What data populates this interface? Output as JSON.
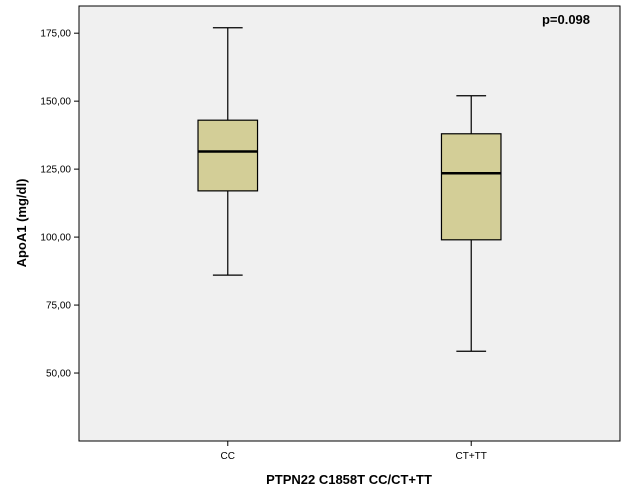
{
  "chart_data": {
    "type": "boxplot",
    "title": "",
    "xlabel": "PTPN22 C1858T CC/CT+TT",
    "ylabel": "ApoA1 (mg/dl)",
    "annotation": "p=0.098",
    "ylim": [
      25,
      185
    ],
    "yticks": [
      50,
      75,
      100,
      125,
      150,
      175
    ],
    "ytick_labels": [
      "50,00",
      "75,00",
      "100,00",
      "125,00",
      "150,00",
      "175,00"
    ],
    "categories": [
      "CC",
      "CT+TT"
    ],
    "boxes": [
      {
        "category": "CC",
        "min": 86,
        "q1": 117,
        "median": 131.5,
        "q3": 143,
        "max": 177
      },
      {
        "category": "CT+TT",
        "min": 58,
        "q1": 99,
        "median": 123.5,
        "q3": 138,
        "max": 152
      }
    ],
    "grid": false,
    "colors": {
      "plot_background": "#f0f0f0",
      "box_fill": "#d3ce97",
      "stroke": "#000000"
    }
  }
}
